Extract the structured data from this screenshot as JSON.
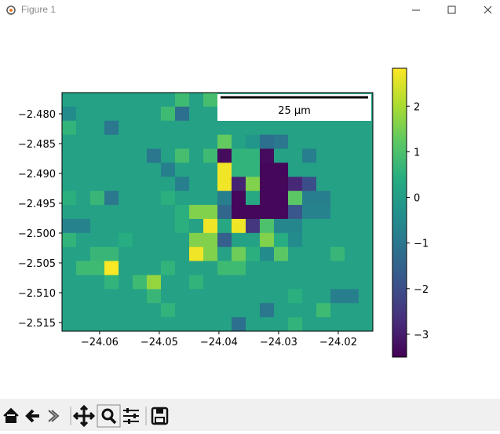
{
  "window": {
    "title": "Figure 1"
  },
  "chart_data": {
    "type": "heatmap",
    "colormap": "viridis",
    "extent": [
      -24.0663,
      -24.0142,
      -2.51645,
      -2.47645
    ],
    "xlim": [
      -24.0663,
      -24.0142
    ],
    "ylim": [
      -2.51645,
      -2.47645
    ],
    "xticks": [
      {
        "value": -24.06,
        "label": "−24.06"
      },
      {
        "value": -24.05,
        "label": "−24.05"
      },
      {
        "value": -24.04,
        "label": "−24.04"
      },
      {
        "value": -24.03,
        "label": "−24.03"
      },
      {
        "value": -24.02,
        "label": "−24.02"
      }
    ],
    "yticks": [
      {
        "value": -2.48,
        "label": "−2.480"
      },
      {
        "value": -2.485,
        "label": "−2.485"
      },
      {
        "value": -2.49,
        "label": "−2.490"
      },
      {
        "value": -2.495,
        "label": "−2.495"
      },
      {
        "value": -2.5,
        "label": "−2.500"
      },
      {
        "value": -2.505,
        "label": "−2.505"
      },
      {
        "value": -2.51,
        "label": "−2.510"
      },
      {
        "value": -2.515,
        "label": "−2.515"
      }
    ],
    "clim": [
      -3.5,
      2.83
    ],
    "cticks": [
      {
        "value": -3,
        "label": "−3"
      },
      {
        "value": -2,
        "label": "−2"
      },
      {
        "value": -1,
        "label": "−1"
      },
      0,
      1,
      2
    ],
    "scalebar_label": "25 µm",
    "z": [
      [
        0.1,
        0.1,
        0.1,
        0.1,
        0.1,
        0.1,
        0.1,
        0.1,
        0.8,
        0.1,
        0.9,
        0.1,
        0.1,
        0.1,
        0.1,
        0.1,
        0.1,
        0.1,
        0.1,
        0.1,
        0.1,
        0.1
      ],
      [
        -0.5,
        0.1,
        0.1,
        0.1,
        0.1,
        0.1,
        0.1,
        0.8,
        -1.2,
        0.1,
        0.1,
        0.1,
        0.1,
        0.1,
        0.1,
        0.1,
        0.1,
        0.1,
        0.1,
        0.1,
        0.1,
        0.1
      ],
      [
        0.6,
        0.1,
        0.1,
        -1.0,
        0.1,
        0.1,
        0.1,
        0.1,
        0.1,
        0.1,
        0.1,
        0.1,
        0.1,
        0.1,
        0.1,
        0.1,
        0.1,
        0.1,
        0.1,
        0.1,
        0.1,
        0.1
      ],
      [
        0.1,
        0.1,
        0.1,
        0.1,
        0.1,
        0.1,
        0.1,
        0.1,
        0.1,
        0.1,
        0.1,
        1.3,
        0.1,
        -0.2,
        -1.2,
        -1.0,
        0.1,
        0.1,
        0.1,
        0.1,
        0.1,
        0.1
      ],
      [
        0.1,
        0.1,
        0.1,
        0.1,
        0.1,
        0.1,
        -1.0,
        0.1,
        0.9,
        0.1,
        0.8,
        -3.3,
        0.6,
        0.6,
        -3.3,
        0.1,
        0.1,
        -0.8,
        0.1,
        0.1,
        0.1,
        0.1
      ],
      [
        0.1,
        0.1,
        0.1,
        0.1,
        0.1,
        0.1,
        0.1,
        -0.8,
        0.1,
        0.1,
        0.1,
        2.7,
        0.6,
        0.6,
        -3.4,
        -3.4,
        0.1,
        0.1,
        0.1,
        0.1,
        0.1,
        0.1
      ],
      [
        0.1,
        0.1,
        0.1,
        0.1,
        0.1,
        0.1,
        0.1,
        0.1,
        -0.8,
        0.1,
        0.1,
        2.7,
        -2.9,
        1.6,
        -3.4,
        -3.4,
        -2.8,
        -2.0,
        0.1,
        0.1,
        0.1,
        0.1
      ],
      [
        0.5,
        0.1,
        0.7,
        -1.0,
        0.1,
        0.1,
        0.1,
        0.5,
        0.1,
        0.1,
        0.1,
        -0.8,
        -3.4,
        0.3,
        -3.4,
        -3.4,
        1.2,
        -0.8,
        -0.8,
        0.1,
        0.1,
        0.1
      ],
      [
        0.1,
        0.1,
        0.1,
        0.1,
        0.1,
        0.1,
        0.1,
        0.1,
        0.5,
        1.6,
        1.6,
        -1.4,
        -3.4,
        -3.4,
        -3.4,
        -3.4,
        -1.8,
        -0.7,
        -0.7,
        0.1,
        0.1,
        0.1
      ],
      [
        -0.7,
        -0.7,
        0.1,
        0.1,
        0.1,
        0.1,
        0.1,
        0.1,
        0.5,
        0.1,
        2.7,
        0.3,
        2.7,
        -2.5,
        1.0,
        -0.6,
        -0.6,
        0.1,
        0.1,
        0.1,
        0.1,
        0.1
      ],
      [
        0.6,
        0.1,
        0.1,
        0.1,
        0.4,
        0.1,
        0.1,
        0.1,
        0.1,
        1.6,
        1.6,
        -1.6,
        0.1,
        0.1,
        1.6,
        0.4,
        -0.5,
        0.1,
        0.1,
        0.1,
        0.1,
        0.1
      ],
      [
        0.1,
        0.1,
        0.7,
        0.7,
        0.1,
        0.1,
        0.1,
        0.1,
        0.1,
        2.7,
        1.6,
        0.1,
        1.4,
        0.5,
        -0.5,
        1.2,
        0.1,
        0.1,
        0.1,
        0.7,
        0.1,
        0.1
      ],
      [
        0.1,
        0.8,
        0.8,
        2.8,
        0.1,
        0.1,
        0.1,
        0.6,
        0.1,
        0.1,
        0.1,
        0.8,
        0.8,
        0.1,
        0.1,
        0.1,
        0.1,
        0.1,
        0.1,
        0.1,
        0.1,
        0.1
      ],
      [
        0.1,
        0.1,
        0.1,
        0.6,
        0.1,
        0.8,
        1.8,
        0.1,
        0.1,
        0.6,
        0.1,
        0.1,
        0.1,
        0.1,
        0.1,
        0.1,
        0.1,
        0.1,
        0.1,
        0.1,
        0.1,
        0.1
      ],
      [
        0.1,
        0.1,
        0.1,
        0.1,
        0.1,
        0.1,
        0.7,
        0.1,
        0.1,
        0.1,
        0.1,
        0.1,
        0.1,
        0.1,
        0.1,
        0.1,
        0.5,
        0.1,
        0.1,
        -0.8,
        -0.8,
        0.1
      ],
      [
        0.1,
        0.1,
        0.1,
        0.1,
        0.1,
        0.1,
        0.1,
        0.6,
        0.1,
        0.1,
        0.1,
        0.1,
        0.1,
        0.1,
        -1.0,
        0.1,
        0.1,
        0.1,
        0.8,
        0.1,
        0.1,
        0.1
      ],
      [
        0.1,
        0.1,
        0.1,
        0.1,
        0.1,
        0.1,
        0.1,
        0.1,
        0.1,
        0.1,
        0.1,
        0.1,
        -1.2,
        0.1,
        0.1,
        0.1,
        0.6,
        0.1,
        0.1,
        0.1,
        0.1,
        0.1
      ]
    ]
  }
}
